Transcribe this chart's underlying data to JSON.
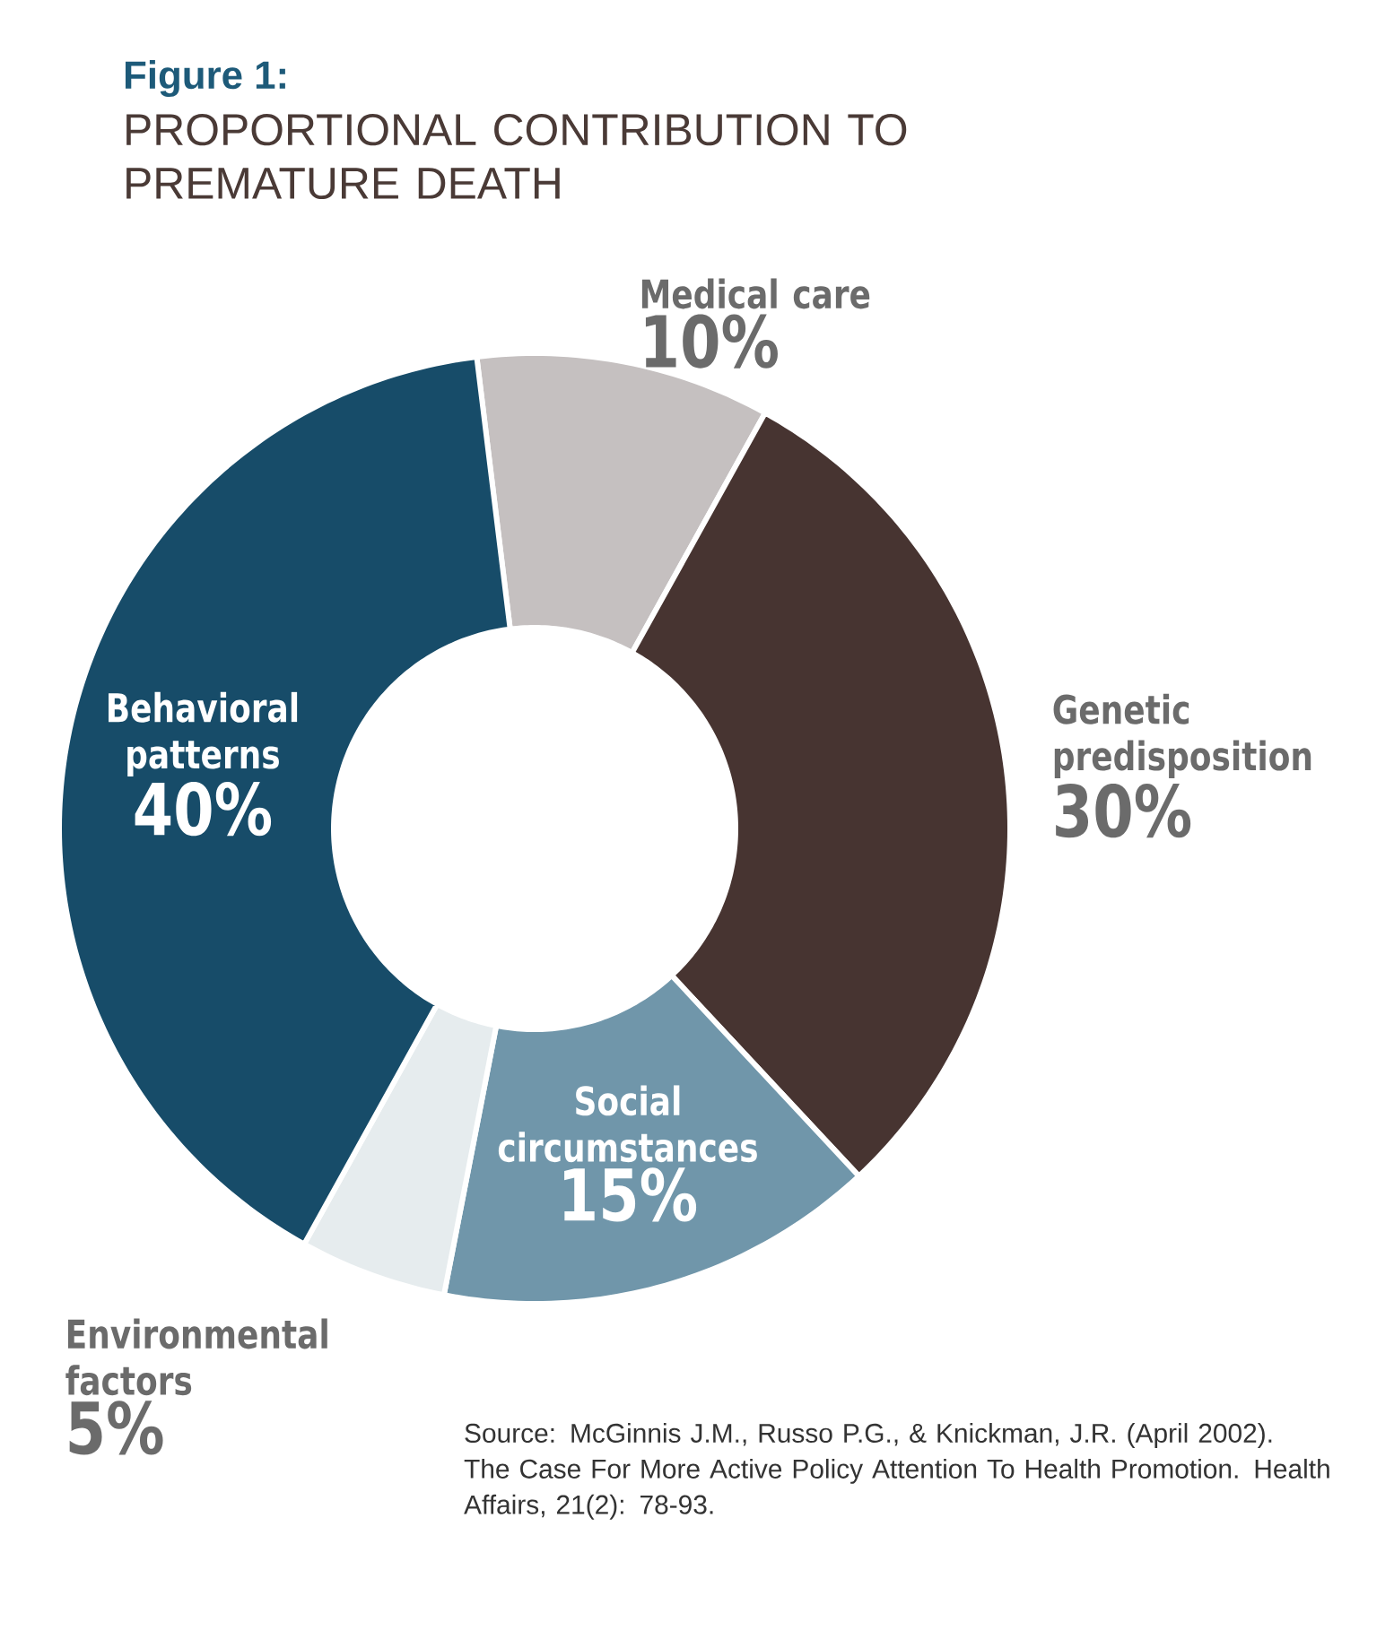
{
  "chart_data": {
    "type": "donut",
    "title": "Figure 1:",
    "subtitle": "PROPORTIONAL CONTRIBUTION TO PREMATURE DEATH",
    "categories": [
      "Medical care",
      "Genetic predisposition",
      "Social circumstances",
      "Environmental factors",
      "Behavioral patterns"
    ],
    "values": [
      10,
      30,
      15,
      5,
      40
    ],
    "value_labels": [
      "10%",
      "30%",
      "15%",
      "5%",
      "40%"
    ],
    "colors": [
      "#c5c0c0",
      "#473431",
      "#7096aa",
      "#e6ecee",
      "#174c69"
    ],
    "annotations": [
      "Source: McGinnis J.M., Russo P.G., & Knickman, J.R. (April 2002). The Case For More Active Policy Attention To Health Promotion. Health Affairs, 21(2): 78-93."
    ]
  }
}
